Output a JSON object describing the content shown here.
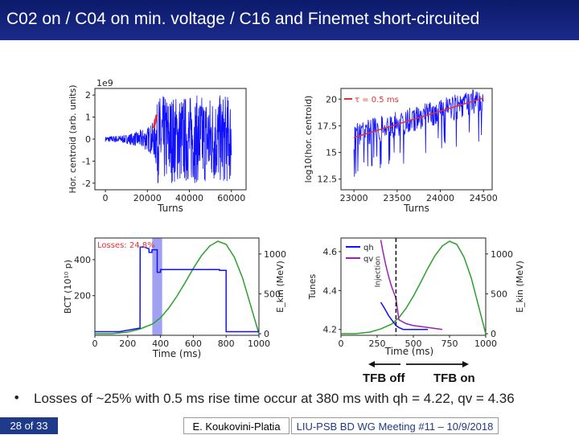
{
  "slide": {
    "title": "C02 on / C04 on min. voltage / C16 and Finemet short-circuited",
    "bullet": "Losses of ~25% with 0.5 ms rise time occur at 380 ms with qh = 4.22, qv = 4.36",
    "annotations": {
      "tfb_off": "TFB off",
      "tfb_on": "TFB on"
    },
    "footer": {
      "page": "28 of 33",
      "author": "E. Koukovini-Platia",
      "meeting": "LIU-PSB BD WG Meeting #11 – 10/9/2018"
    },
    "colors": {
      "title_bg": "#12207a",
      "footer_blue": "#1f3a8a",
      "signal": "#1010ff",
      "fit": "#e53030",
      "ekin": "#2ca02c",
      "qv": "#9b1fb5"
    }
  },
  "chart_data": [
    {
      "type": "line",
      "panel": "top-left",
      "title": "",
      "xlabel": "Turns",
      "ylabel": "Hor. centroid (arb. units)",
      "y_scale_label": "1e9",
      "xlim": [
        -5000,
        67000
      ],
      "ylim": [
        -2.3,
        2.3
      ],
      "xticks": [
        0,
        20000,
        40000,
        60000
      ],
      "yticks": [
        -2,
        -1,
        0,
        1,
        2
      ],
      "series": [
        {
          "style": "noisy-envelope",
          "color": "#1010ff",
          "envelope": [
            [
              0,
              0.12
            ],
            [
              10000,
              0.2
            ],
            [
              15000,
              0.35
            ],
            [
              20000,
              0.55
            ],
            [
              23000,
              0.8
            ],
            [
              24500,
              1.5
            ],
            [
              25000,
              2.0
            ],
            [
              60000,
              2.0
            ]
          ]
        },
        {
          "style": "highlight",
          "color": "#e53030",
          "x": [
            23000,
            24500
          ],
          "y": [
            0.5,
            1.1
          ]
        }
      ]
    },
    {
      "type": "line",
      "panel": "top-right",
      "title": "",
      "xlabel": "Turns",
      "ylabel": "log10(hor. centroid)",
      "legend": [
        "τ = 0.5 ms"
      ],
      "xlim": [
        22850,
        24600
      ],
      "ylim": [
        11.5,
        21.0
      ],
      "xticks": [
        23000,
        23500,
        24000,
        24500
      ],
      "yticks": [
        12.5,
        15.0,
        17.5,
        20.0
      ],
      "series": [
        {
          "style": "noisy-band",
          "color": "#1010ff",
          "x": [
            23000,
            24500
          ],
          "center": [
            16.5,
            20.0
          ],
          "band": 1.2
        },
        {
          "name": "τ = 0.5 ms",
          "color": "#e53030",
          "x": [
            23000,
            24500
          ],
          "y": [
            16.4,
            20.1
          ]
        }
      ]
    },
    {
      "type": "line",
      "panel": "bottom-left",
      "title": "",
      "xlabel": "Time (ms)",
      "ylabel": "BCT (10¹⁰ p)",
      "y2label": "E_kin (MeV)",
      "annotation": "Losses: 24.8%",
      "xlim": [
        0,
        1000
      ],
      "ylim": [
        -20,
        520
      ],
      "y2lim": [
        -20,
        1200
      ],
      "xticks": [
        0,
        200,
        400,
        600,
        800,
        1000
      ],
      "yticks": [
        200,
        400
      ],
      "y2ticks": [
        0,
        500,
        1000
      ],
      "shaded_x": [
        350,
        410
      ],
      "series": [
        {
          "name": "BCT",
          "color": "#1010ff",
          "x": [
            0,
            150,
            275,
            276,
            300,
            330,
            330,
            348,
            348,
            380,
            380,
            400,
            400,
            760,
            760,
            800,
            800,
            1000
          ],
          "y": [
            0,
            0,
            20,
            470,
            470,
            460,
            440,
            440,
            455,
            455,
            330,
            330,
            345,
            345,
            340,
            340,
            0,
            0
          ]
        },
        {
          "name": "E_kin",
          "axis": "right",
          "color": "#2ca02c",
          "x": [
            0,
            100,
            200,
            275,
            350,
            400,
            450,
            500,
            550,
            600,
            650,
            700,
            750,
            800,
            850,
            900,
            950,
            1000
          ],
          "y": [
            0,
            0,
            20,
            60,
            120,
            200,
            320,
            470,
            640,
            820,
            980,
            1100,
            1160,
            1120,
            960,
            700,
            350,
            0
          ]
        }
      ]
    },
    {
      "type": "line",
      "panel": "bottom-right",
      "title": "",
      "xlabel": "Time (ms)",
      "ylabel": "Tunes",
      "y2label": "E_kin (MeV)",
      "vline_label": "Injection",
      "vline_x": 380,
      "legend": [
        "qh",
        "qv"
      ],
      "xlim": [
        0,
        1000
      ],
      "ylim": [
        4.17,
        4.67
      ],
      "y2lim": [
        -20,
        1200
      ],
      "xticks": [
        0,
        250,
        500,
        750,
        1000
      ],
      "yticks": [
        4.2,
        4.4,
        4.6
      ],
      "y2ticks": [
        0,
        500,
        1000
      ],
      "series": [
        {
          "name": "qh",
          "color": "#1010ff",
          "x": [
            275,
            300,
            330,
            360,
            380,
            400,
            430,
            500,
            600
          ],
          "y": [
            4.34,
            4.31,
            4.27,
            4.24,
            4.22,
            4.21,
            4.2,
            4.2,
            4.2
          ]
        },
        {
          "name": "qv",
          "color": "#9b1fb5",
          "x": [
            275,
            290,
            310,
            330,
            350,
            370,
            380,
            400,
            450,
            500,
            600,
            700
          ],
          "y": [
            4.66,
            4.6,
            4.53,
            4.47,
            4.42,
            4.38,
            4.36,
            4.25,
            4.23,
            4.22,
            4.21,
            4.2
          ]
        },
        {
          "name": "E_kin",
          "axis": "right",
          "color": "#2ca02c",
          "x": [
            0,
            100,
            200,
            275,
            350,
            400,
            450,
            500,
            550,
            600,
            650,
            700,
            750,
            800,
            850,
            900,
            950,
            1000
          ],
          "y": [
            0,
            0,
            20,
            60,
            120,
            200,
            320,
            470,
            640,
            820,
            980,
            1100,
            1160,
            1120,
            960,
            700,
            350,
            0
          ]
        }
      ]
    }
  ]
}
